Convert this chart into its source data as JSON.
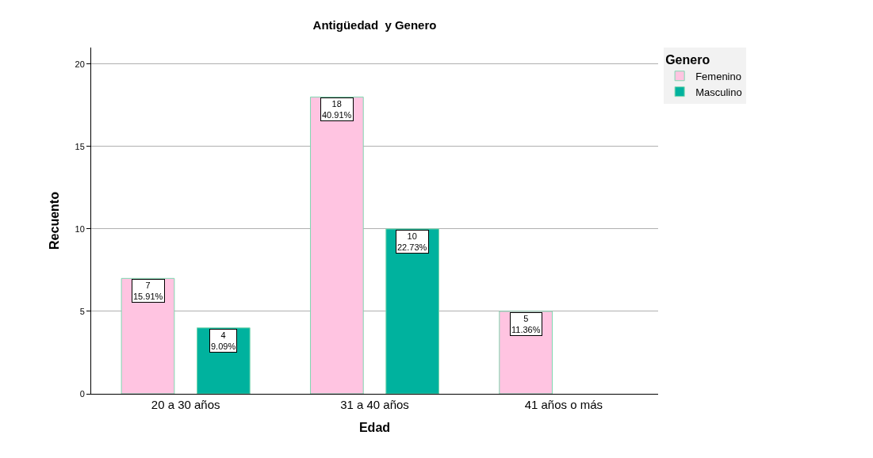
{
  "chart_data": {
    "type": "bar",
    "title": "Antigüedad  y Genero",
    "xlabel": "Edad",
    "ylabel": "Recuento",
    "legend_title": "Genero",
    "categories": [
      "20 a 30 años",
      "31 a 40 años",
      "41 años o más"
    ],
    "series": [
      {
        "name": "Femenino",
        "color": "#ffc4e1",
        "values": [
          7,
          18,
          5
        ],
        "value_labels": [
          "7\n15.91%",
          "18\n40.91%",
          "5\n11.36%"
        ]
      },
      {
        "name": "Masculino",
        "color": "#00b29e",
        "values": [
          4,
          10,
          null
        ],
        "value_labels": [
          "4\n9.09%",
          "10\n22.73%",
          null
        ]
      }
    ],
    "ylim": [
      0,
      21
    ],
    "yticks": [
      0,
      5,
      10,
      15,
      20
    ],
    "grid": "y",
    "legend": "top right"
  }
}
